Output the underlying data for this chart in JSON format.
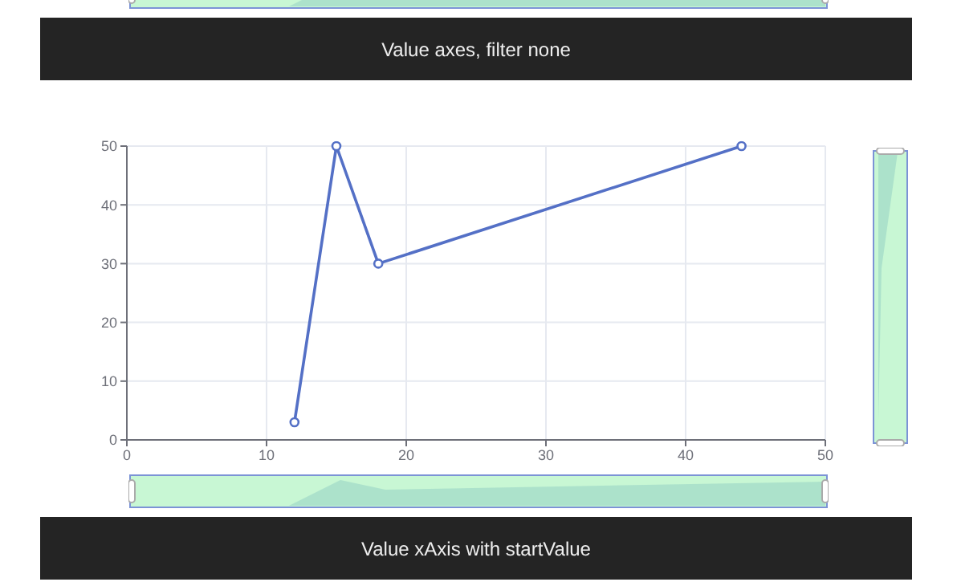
{
  "chart_data": {
    "type": "line",
    "annotations": [
      "Value axes, filter none",
      "Value xAxis with startValue"
    ],
    "x": [
      12,
      15,
      18,
      44
    ],
    "series": [
      {
        "color": "#5470c6",
        "values": [
          3,
          50,
          30,
          50
        ]
      }
    ],
    "xlim": [
      0,
      50
    ],
    "xticks": [
      0,
      10,
      20,
      30,
      40,
      50
    ],
    "ylim": [
      0,
      50
    ],
    "yticks": [
      0,
      10,
      20,
      30,
      40,
      50
    ],
    "grid": true,
    "marker": "circle",
    "legend": false
  }
}
